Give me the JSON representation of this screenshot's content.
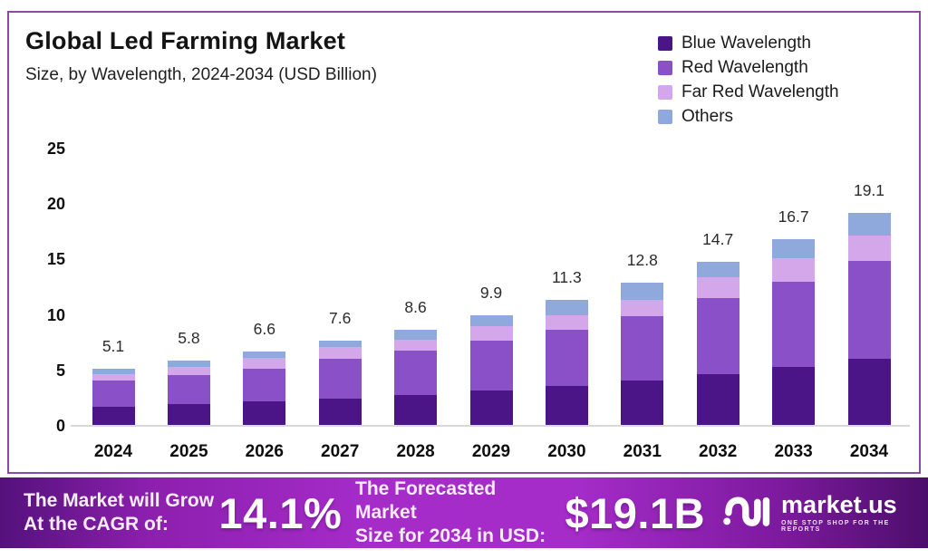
{
  "header": {
    "title": "Global Led Farming Market",
    "subtitle": "Size, by Wavelength, 2024-2034 (USD Billion)"
  },
  "chart_data": {
    "type": "bar",
    "stacked": true,
    "title": "Global Led Farming Market",
    "subtitle": "Size, by Wavelength, 2024-2034 (USD Billion)",
    "categories": [
      "2024",
      "2025",
      "2026",
      "2027",
      "2028",
      "2029",
      "2030",
      "2031",
      "2032",
      "2033",
      "2034"
    ],
    "series": [
      {
        "name": "Blue Wavelength",
        "color": "#4c1587",
        "values": [
          1.6,
          1.9,
          2.1,
          2.4,
          2.7,
          3.1,
          3.5,
          4.0,
          4.6,
          5.2,
          6.0
        ]
      },
      {
        "name": "Red Wavelength",
        "color": "#8a50c8",
        "values": [
          2.4,
          2.6,
          3.0,
          3.6,
          4.0,
          4.5,
          5.1,
          5.8,
          6.8,
          7.7,
          8.8
        ]
      },
      {
        "name": "Far Red Wavelength",
        "color": "#d4a7ea",
        "values": [
          0.55,
          0.75,
          0.95,
          1.05,
          0.95,
          1.3,
          1.3,
          1.5,
          1.9,
          2.1,
          2.3
        ]
      },
      {
        "name": "Others",
        "color": "#8fa9dd",
        "values": [
          0.55,
          0.55,
          0.55,
          0.55,
          0.95,
          1.0,
          1.4,
          1.5,
          1.4,
          1.7,
          2.0
        ]
      }
    ],
    "totals": [
      "5.1",
      "5.8",
      "6.6",
      "7.6",
      "8.6",
      "9.9",
      "11.3",
      "12.8",
      "14.7",
      "16.7",
      "19.1"
    ],
    "y_ticks": [
      0,
      5,
      10,
      15,
      20,
      25
    ],
    "ylim": [
      0,
      25
    ],
    "grid": false,
    "legend_position": "top-right"
  },
  "banner": {
    "cagr_label": "The Market will Grow\nAt the CAGR of:",
    "cagr_value": "14.1%",
    "forecast_label": "The Forecasted Market\nSize for 2034 in USD:",
    "forecast_value": "$19.1B",
    "logo_text": "market.us",
    "logo_tagline": "ONE STOP SHOP FOR THE REPORTS"
  },
  "colors": {
    "card_border": "#8a4ba8",
    "axis_line": "#d9d9d9",
    "banner_dark": "#54117b",
    "banner_bright": "#a52cc9",
    "banner_text": "#f8ebfa"
  }
}
